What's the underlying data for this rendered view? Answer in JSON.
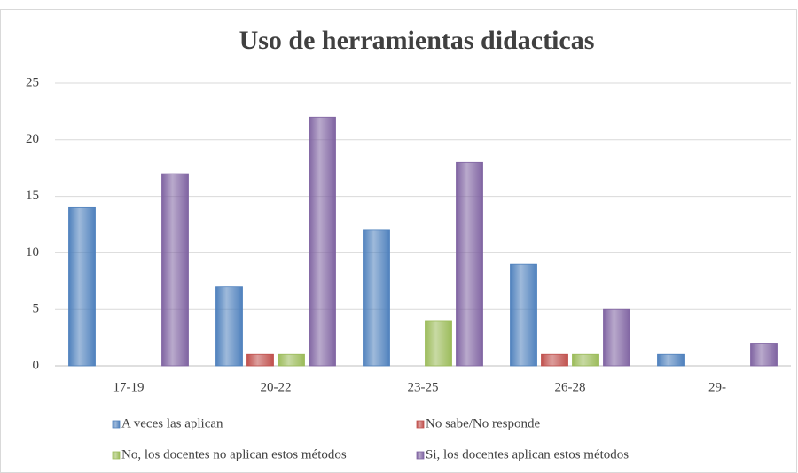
{
  "chart_data": {
    "type": "bar",
    "title": "Uso de herramientas didacticas",
    "categories": [
      "17-19",
      "20-22",
      "23-25",
      "26-28",
      "29-"
    ],
    "series": [
      {
        "name": "A veces las aplican",
        "color": "#4f81bd",
        "values": [
          14,
          7,
          12,
          9,
          1
        ]
      },
      {
        "name": "No sabe/No responde",
        "color": "#c0504d",
        "values": [
          0,
          1,
          0,
          1,
          0
        ]
      },
      {
        "name": "No, los docentes no aplican estos métodos",
        "color": "#9bbb59",
        "values": [
          0,
          1,
          4,
          1,
          0
        ]
      },
      {
        "name": "Si, los docentes aplican estos métodos",
        "color": "#8064a2",
        "values": [
          17,
          22,
          18,
          5,
          2
        ]
      }
    ],
    "ylim": [
      0,
      25
    ],
    "yticks": [
      0,
      5,
      10,
      15,
      20,
      25
    ],
    "grid": true,
    "legend": "bottom"
  }
}
